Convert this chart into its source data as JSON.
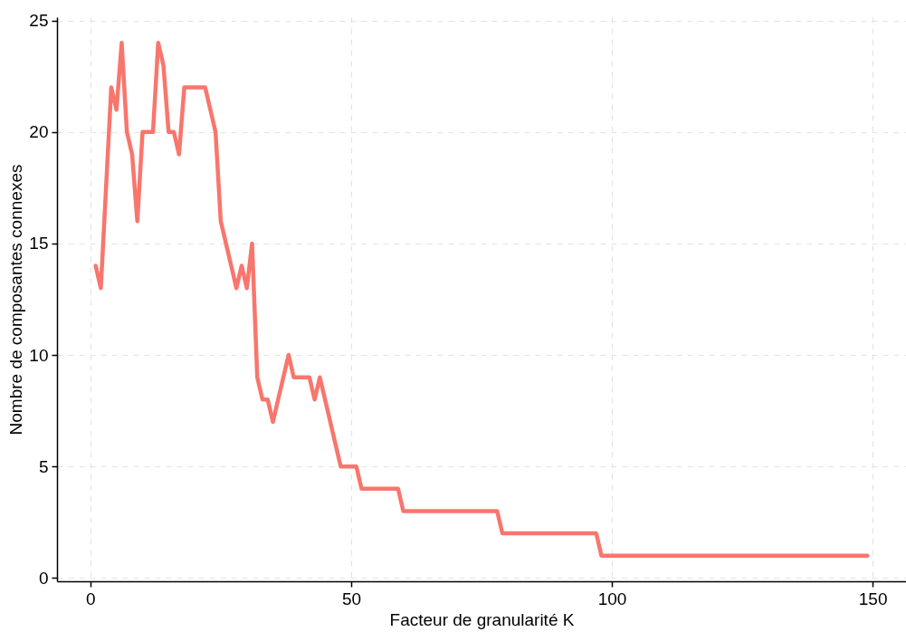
{
  "chart_data": {
    "type": "line",
    "xlabel": "Facteur de granularité K",
    "ylabel": "Nombre de composantes connexes",
    "xlim": [
      -6.4,
      156.4
    ],
    "xticks": [
      0,
      50,
      100,
      150
    ],
    "ylim": [
      -0.15,
      25.15
    ],
    "yticks": [
      0,
      5,
      10,
      15,
      20,
      25
    ],
    "grid": true,
    "line_style": "solid",
    "marker": "none",
    "x": [
      1,
      2,
      4,
      5,
      6,
      7,
      8,
      9,
      10,
      12,
      13,
      14,
      15,
      16,
      17,
      18,
      22,
      24,
      25,
      28,
      29,
      30,
      31,
      32,
      33,
      34,
      35,
      38,
      39,
      42,
      43,
      44,
      48,
      51,
      52,
      59,
      60,
      78,
      79,
      97,
      98,
      149
    ],
    "series": [
      {
        "color": "#f8766d",
        "values": [
          14,
          13,
          22,
          21,
          24,
          20,
          19,
          16,
          20,
          20,
          24,
          23,
          20,
          20,
          19,
          22,
          22,
          20,
          16,
          13,
          14,
          13,
          15,
          9,
          8,
          8,
          7,
          10,
          9,
          9,
          8,
          9,
          5,
          5,
          4,
          4,
          3,
          3,
          2,
          2,
          1,
          1
        ]
      }
    ]
  }
}
